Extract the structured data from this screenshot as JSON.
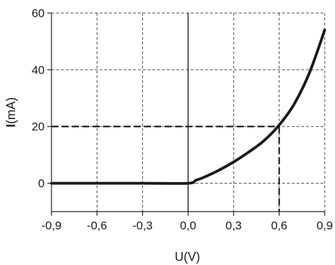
{
  "chart_data": {
    "type": "line",
    "xlabel": "U(V)",
    "ylabel_bold": "I",
    "ylabel_rest": "(mA)",
    "xlim": [
      -0.9,
      0.9
    ],
    "ylim": [
      -10,
      60
    ],
    "x_ticks": [
      -0.9,
      -0.6,
      -0.3,
      0.0,
      0.3,
      0.6,
      0.9
    ],
    "x_tick_labels": [
      "-0,9",
      "-0,6",
      "-0,3",
      "0,0",
      "0,3",
      "0,6",
      "0,9"
    ],
    "y_ticks": [
      0,
      20,
      40,
      60
    ],
    "y_tick_labels": [
      "0",
      "20",
      "40",
      "60"
    ],
    "grid": true,
    "series": [
      {
        "x": [
          -0.9,
          -0.6,
          -0.3,
          0.0,
          0.05,
          0.1,
          0.2,
          0.3,
          0.4,
          0.5,
          0.6,
          0.7,
          0.8,
          0.9
        ],
        "y": [
          0,
          0,
          0,
          0,
          1,
          2,
          4.5,
          7.5,
          11,
          15,
          20.5,
          28,
          39,
          54
        ]
      }
    ],
    "guide_point": {
      "x": 0.6,
      "y": 20
    }
  }
}
